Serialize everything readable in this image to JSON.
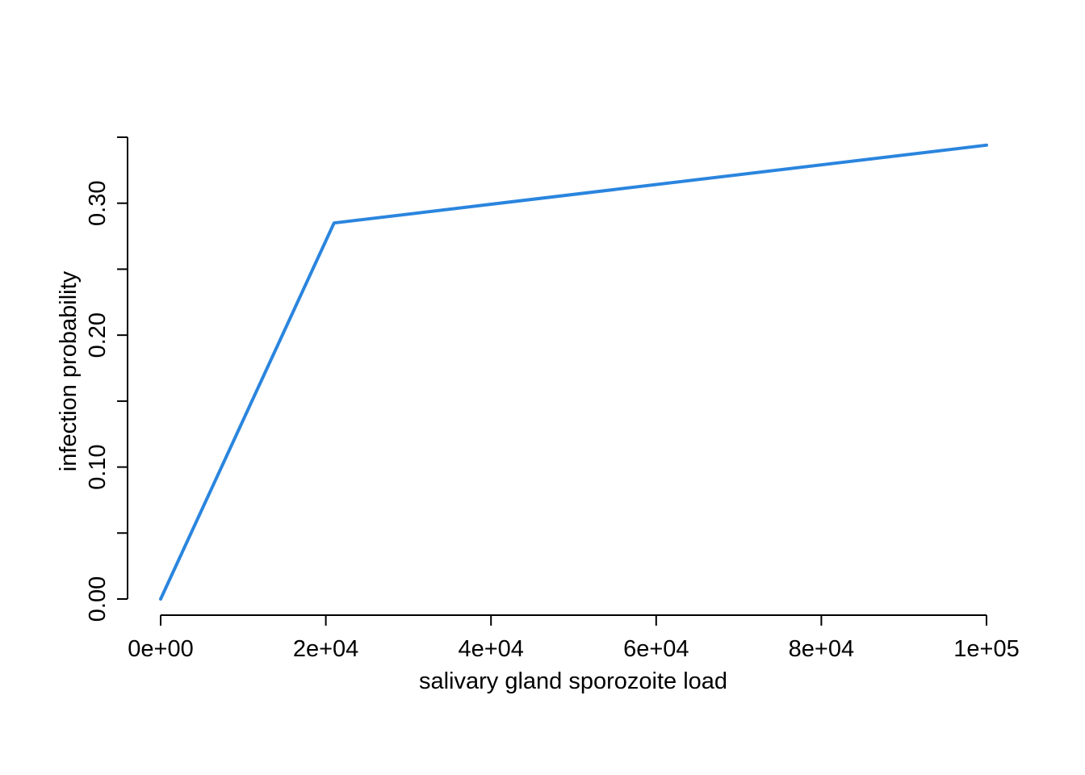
{
  "chart_data": {
    "type": "line",
    "title": "",
    "xlabel": "salivary gland sporozoite load",
    "ylabel": "infection probability",
    "xlim": [
      0,
      100000
    ],
    "ylim": [
      0,
      0.35
    ],
    "x_ticks": [
      0,
      20000,
      40000,
      60000,
      80000,
      100000
    ],
    "x_tick_labels": [
      "0e+00",
      "2e+04",
      "4e+04",
      "6e+04",
      "8e+04",
      "1e+05"
    ],
    "y_ticks": [
      0,
      0.05,
      0.1,
      0.15,
      0.2,
      0.25,
      0.3,
      0.35
    ],
    "y_tick_labels": [
      "0.00",
      "",
      "0.10",
      "",
      "0.20",
      "",
      "0.30",
      ""
    ],
    "grid": false,
    "series": [
      {
        "color": "#2a85de",
        "x": [
          0,
          21000,
          100000
        ],
        "y": [
          0,
          0.285,
          0.344
        ]
      }
    ]
  }
}
